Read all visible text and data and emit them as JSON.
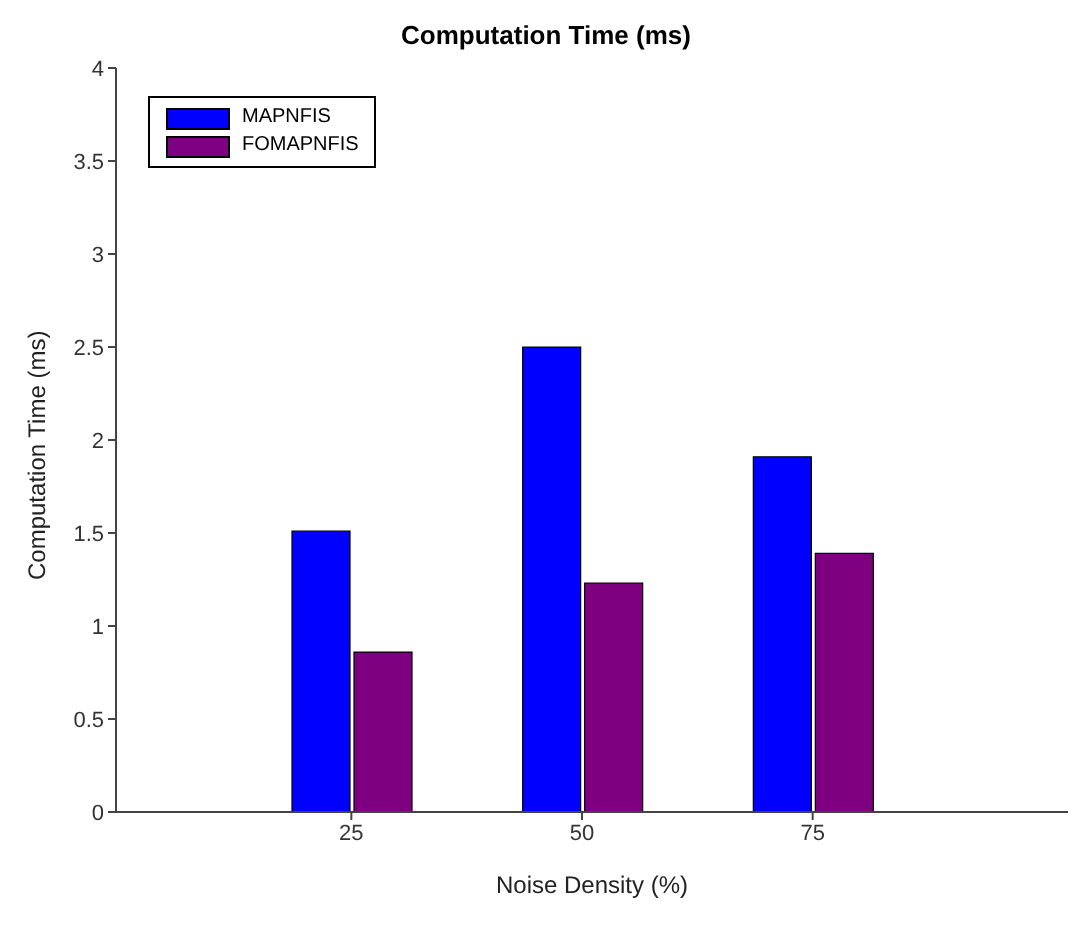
{
  "chart_data": {
    "type": "bar",
    "title": "Computation Time (ms)",
    "xlabel": "Noise Density (%)",
    "ylabel": "Computation Time (ms)",
    "categories": [
      "25",
      "50",
      "75"
    ],
    "series": [
      {
        "name": "MAPNFIS",
        "color": "#0000ff",
        "values": [
          1.51,
          2.5,
          1.91
        ]
      },
      {
        "name": "FOMAPNFIS",
        "color": "#7e0080",
        "values": [
          0.86,
          1.23,
          1.39
        ]
      }
    ],
    "ylim": [
      0,
      4
    ],
    "yticks": [
      0,
      0.5,
      1,
      1.5,
      2,
      2.5,
      3,
      3.5,
      4
    ],
    "grid": false,
    "legend": "top left"
  }
}
